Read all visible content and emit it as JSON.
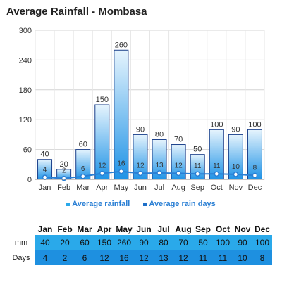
{
  "title": "Average Rainfall - Mombasa",
  "legend": {
    "rainfall": "Average rainfall",
    "rain_days": "Average rain days"
  },
  "colors": {
    "bar_top": "#ffffff",
    "bar_bottom": "#1f93e6",
    "bar_stroke": "#1a3f8a",
    "line": "#2a7fd4",
    "mm_row": "#2aa9ea",
    "days_row": "#1e90e0"
  },
  "table": {
    "row_labels": [
      "mm",
      "Days"
    ]
  },
  "chart_data": {
    "type": "bar",
    "title": "Average Rainfall - Mombasa",
    "categories": [
      "Jan",
      "Feb",
      "Mar",
      "Apr",
      "May",
      "Jun",
      "Jul",
      "Aug",
      "Sep",
      "Oct",
      "Nov",
      "Dec"
    ],
    "series": [
      {
        "name": "Average rainfall",
        "type": "bar",
        "values": [
          40,
          20,
          60,
          150,
          260,
          90,
          80,
          70,
          50,
          100,
          90,
          100
        ]
      },
      {
        "name": "Average rain days",
        "type": "line",
        "values": [
          4,
          2,
          6,
          12,
          16,
          12,
          13,
          12,
          11,
          11,
          10,
          8
        ]
      }
    ],
    "yticks": [
      0,
      60,
      120,
      180,
      240,
      300
    ],
    "ylim": [
      0,
      300
    ],
    "grid": true,
    "legend_position": "bottom"
  }
}
